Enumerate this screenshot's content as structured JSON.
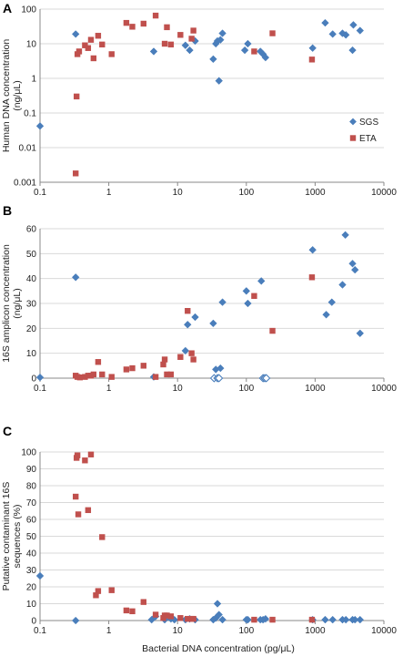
{
  "colors": {
    "sgs": "#4A7EBB",
    "eta": "#C0504D",
    "grid": "#D9D9D9",
    "axis": "#888888"
  },
  "legend": {
    "placement": "right of panel A",
    "items": [
      "SGS",
      "ETA"
    ]
  },
  "shared_xlabel": "Bacterial DNA concentration (pg/μL)",
  "chart_data": [
    {
      "panel": "A",
      "type": "scatter",
      "x_scale": "log",
      "y_scale": "log",
      "xlim": [
        0.1,
        10000
      ],
      "ylim": [
        0.001,
        100
      ],
      "xticks": [
        "0.1",
        "1",
        "10",
        "100",
        "1000",
        "10000"
      ],
      "yticks": [
        "0.001",
        "0.01",
        "0.1",
        "1",
        "10",
        "100"
      ],
      "ytick_values": [
        0.001,
        0.01,
        0.1,
        1,
        10,
        100
      ],
      "ylabel": [
        "Human DNA concentration",
        "(ng/μL)"
      ],
      "grid": "horizontal",
      "series": [
        {
          "name": "SGS",
          "marker": "diamond",
          "x": [
            0.1,
            0.33,
            4.5,
            13,
            15,
            18,
            33,
            36,
            38,
            40,
            42,
            45,
            95,
            105,
            160,
            175,
            190,
            920,
            1400,
            1800,
            2500,
            2800,
            3500,
            3600,
            4500
          ],
          "y": [
            0.042,
            19,
            6,
            9,
            6.5,
            12,
            3.6,
            10,
            12,
            0.85,
            13,
            20,
            6.5,
            10,
            6,
            5,
            4,
            7.5,
            40,
            19,
            20,
            18,
            6.5,
            35,
            24
          ]
        },
        {
          "name": "ETA",
          "marker": "square",
          "x": [
            0.33,
            0.34,
            0.35,
            0.37,
            0.45,
            0.5,
            0.55,
            0.6,
            0.7,
            0.8,
            1.1,
            1.8,
            2.2,
            3.2,
            4.8,
            6.5,
            7,
            8,
            11,
            16,
            17,
            130,
            240,
            900
          ],
          "y": [
            0.0018,
            0.3,
            5,
            6,
            9,
            7.5,
            13,
            3.8,
            17,
            9.5,
            5,
            40,
            31,
            38,
            65,
            10,
            30,
            9.5,
            18,
            14,
            24,
            6,
            20,
            3.5
          ]
        }
      ]
    },
    {
      "panel": "B",
      "type": "scatter",
      "x_scale": "log",
      "y_scale": "linear",
      "xlim": [
        0.1,
        10000
      ],
      "ylim": [
        0,
        60
      ],
      "xticks": [
        "0.1",
        "1",
        "10",
        "100",
        "1000",
        "10000"
      ],
      "yticks": [
        "0",
        "10",
        "20",
        "30",
        "40",
        "50",
        "60"
      ],
      "ytick_values": [
        0,
        10,
        20,
        30,
        40,
        50,
        60
      ],
      "ylabel": [
        "16S amplicon concentration",
        "(ng/μL)"
      ],
      "grid": "horizontal",
      "series": [
        {
          "name": "SGS",
          "marker": "diamond",
          "x": [
            0.1,
            0.33,
            4.5,
            13,
            14,
            18,
            33,
            36,
            42,
            45,
            100,
            105,
            165,
            920,
            1450,
            1750,
            2500,
            2750,
            3500,
            3800,
            4500
          ],
          "y": [
            0.3,
            40.5,
            0.5,
            11,
            21.5,
            24.5,
            22,
            3.5,
            4,
            30.5,
            35,
            30,
            39,
            51.5,
            25.5,
            30.5,
            37.5,
            57.5,
            46,
            43.5,
            18
          ]
        },
        {
          "name": "SGS (open markers)",
          "marker": "diamond-open",
          "x": [
            34,
            38,
            40,
            175,
            185,
            195
          ],
          "y": [
            0,
            0,
            0,
            0,
            0,
            0
          ]
        },
        {
          "name": "ETA",
          "marker": "square",
          "x": [
            0.33,
            0.35,
            0.38,
            0.45,
            0.5,
            0.55,
            0.6,
            0.7,
            0.8,
            1.1,
            1.8,
            2.2,
            3.2,
            4.8,
            6.2,
            6.5,
            7,
            8,
            11,
            14,
            16,
            17,
            130,
            240,
            900
          ],
          "y": [
            1,
            0.5,
            0.3,
            0.5,
            1,
            1,
            1.5,
            6.5,
            1.5,
            0.5,
            3.5,
            4,
            5,
            0.5,
            5.5,
            7.5,
            1.5,
            1.5,
            8.5,
            27,
            10,
            7.5,
            33,
            19,
            40.5
          ]
        }
      ]
    },
    {
      "panel": "C",
      "type": "scatter",
      "x_scale": "log",
      "y_scale": "linear",
      "xlim": [
        0.1,
        10000
      ],
      "ylim": [
        0,
        100
      ],
      "xticks": [
        "0.1",
        "1",
        "10",
        "100",
        "1000",
        "10000"
      ],
      "yticks": [
        "0",
        "10",
        "20",
        "30",
        "40",
        "50",
        "60",
        "70",
        "80",
        "90",
        "100"
      ],
      "ytick_values": [
        0,
        10,
        20,
        30,
        40,
        50,
        60,
        70,
        80,
        90,
        100
      ],
      "ylabel": [
        "Putative contaminant 16S",
        "sequences (%)"
      ],
      "grid": "horizontal",
      "series": [
        {
          "name": "SGS",
          "marker": "diamond",
          "x": [
            0.1,
            0.33,
            4.2,
            4.8,
            6.5,
            8,
            9,
            13,
            15,
            18,
            33,
            36,
            38,
            40,
            45,
            100,
            105,
            160,
            175,
            190,
            920,
            1400,
            1800,
            2500,
            2800,
            3500,
            3800,
            4500
          ],
          "y": [
            26.5,
            0,
            0.5,
            2.5,
            0.5,
            1,
            0.5,
            0.5,
            1,
            0.5,
            0.5,
            1.5,
            10,
            3.5,
            0.5,
            0.5,
            0.5,
            0.5,
            0.5,
            1,
            0.5,
            0.5,
            0.5,
            0.5,
            0.5,
            0.5,
            0.5,
            0.5
          ]
        },
        {
          "name": "ETA",
          "marker": "square",
          "x": [
            0.33,
            0.34,
            0.35,
            0.36,
            0.45,
            0.5,
            0.55,
            0.65,
            0.7,
            0.8,
            1.1,
            1.8,
            2.2,
            3.2,
            4.8,
            6.2,
            6.5,
            7,
            8,
            11,
            14,
            16,
            17,
            130,
            240,
            900
          ],
          "y": [
            73.5,
            96.5,
            98,
            63,
            95,
            65.5,
            98.5,
            15,
            17.5,
            49.5,
            18,
            6,
            5.5,
            11,
            3.5,
            1.5,
            3,
            3,
            2.5,
            1.5,
            1,
            1,
            1,
            0.5,
            0.5,
            0.5
          ]
        }
      ]
    }
  ]
}
